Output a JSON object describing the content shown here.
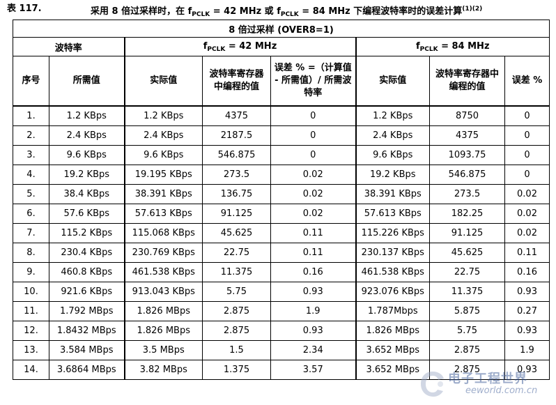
{
  "caption": {
    "number": "表 117.",
    "text_pre": "采用 8 倍过采样时，在 f",
    "sub1": "PCLK",
    "text_mid": " = 42 MHz 或 f",
    "sub2": "PCLK",
    "text_post": " = 84 MHz 下编程波特率时的误差计算",
    "footnote": "(1)(2)"
  },
  "table": {
    "header_top": "8 倍过采样 (OVER8=1)",
    "baud_group": "波特率",
    "fpclk42_pre": "f",
    "fpclk42_sub": "PCLK",
    "fpclk42_post": " = 42 MHz",
    "fpclk84_pre": "f",
    "fpclk84_sub": "PCLK",
    "fpclk84_post": " = 84 MHz",
    "col_index": "序号",
    "col_required": "所需值",
    "col_actual42": "实际值",
    "col_reg42": "波特率寄存器中编程的值",
    "col_err42": "误差 % =（计算值 - 所需值）/ 所需波特率",
    "col_actual84": "实际值",
    "col_reg84": "波特率寄存器中编程的值",
    "col_err84": "误差 %",
    "rows": [
      [
        "1.",
        "1.2 KBps",
        "1.2 KBps",
        "4375",
        "0",
        "1.2 KBps",
        "8750",
        "0"
      ],
      [
        "2.",
        "2.4 KBps",
        "2.4 KBps",
        "2187.5",
        "0",
        "2.4 KBps",
        "4375",
        "0"
      ],
      [
        "3.",
        "9.6 KBps",
        "9.6 KBps",
        "546.875",
        "0",
        "9.6 KBps",
        "1093.75",
        "0"
      ],
      [
        "4.",
        "19.2 KBps",
        "19.195 KBps",
        "273.5",
        "0.02",
        "19.2 KBps",
        "546.875",
        "0"
      ],
      [
        "5.",
        "38.4 KBps",
        "38.391 KBps",
        "136.75",
        "0.02",
        "38.391 KBps",
        "273.5",
        "0.02"
      ],
      [
        "6.",
        "57.6 KBps",
        "57.613 KBps",
        "91.125",
        "0.02",
        "57.613 KBps",
        "182.25",
        "0.02"
      ],
      [
        "7.",
        "115.2 KBps",
        "115.068 KBps",
        "45.625",
        "0.11",
        "115.226 KBps",
        "91.125",
        "0.02"
      ],
      [
        "8.",
        "230.4 KBps",
        "230.769 KBps",
        "22.75",
        "0.11",
        "230.137 KBps",
        "45.625",
        "0.11"
      ],
      [
        "9.",
        "460.8 KBps",
        "461.538 KBps",
        "11.375",
        "0.16",
        "461.538 KBps",
        "22.75",
        "0.16"
      ],
      [
        "10.",
        "921.6 KBps",
        "913.043 KBps",
        "5.75",
        "0.93",
        "923.076 KBps",
        "11.375",
        "0.93"
      ],
      [
        "11.",
        "1.792 MBps",
        "1.826 MBps",
        "2.875",
        "1.9",
        "1.787Mbps",
        "5.875",
        "0.27"
      ],
      [
        "12.",
        "1.8432 MBps",
        "1.826 MBps",
        "2.875",
        "0.93",
        "1.826 MBps",
        "5.75",
        "0.93"
      ],
      [
        "13.",
        "3.584 MBps",
        "3.5 MBps",
        "1.5",
        "2.34",
        "3.652 MBps",
        "2.875",
        "1.9"
      ],
      [
        "14.",
        "3.6864 MBps",
        "3.82 MBps",
        "1.375",
        "3.57",
        "3.652 MBps",
        "2.875",
        "0.93"
      ]
    ]
  },
  "watermark": {
    "logo_cn": "电子工程世界",
    "logo_en": "eeworld.com.cn"
  }
}
